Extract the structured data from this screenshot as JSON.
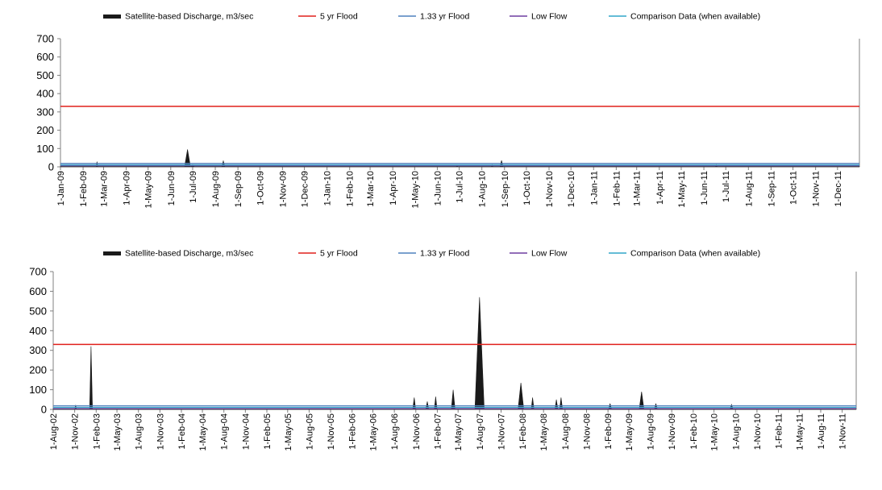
{
  "colors": {
    "discharge": "#1a1a1a",
    "flood5": "#e0201c",
    "flood133": "#4f81bd",
    "lowflow": "#6f3fa0",
    "comparison": "#31a6c8",
    "axis": "#808080"
  },
  "chart_data": [
    {
      "type": "area",
      "legend": [
        {
          "label": "Satellite-based Discharge, m3/sec",
          "key": "discharge",
          "style": "area"
        },
        {
          "label": "5 yr Flood",
          "key": "flood5",
          "style": "line"
        },
        {
          "label": "1.33 yr Flood",
          "key": "flood133",
          "style": "line"
        },
        {
          "label": "Low Flow",
          "key": "lowflow",
          "style": "line"
        },
        {
          "label": "Comparison Data (when available)",
          "key": "comparison",
          "style": "line"
        }
      ],
      "legend_position": "top",
      "ylim": [
        0,
        700
      ],
      "yticks": [
        0,
        100,
        200,
        300,
        400,
        500,
        600,
        700
      ],
      "xlim": [
        "2009-01-01",
        "2011-12-31"
      ],
      "xticks": [
        "1-Jan-09",
        "1-Feb-09",
        "1-Mar-09",
        "1-Apr-09",
        "1-May-09",
        "1-Jun-09",
        "1-Jul-09",
        "1-Aug-09",
        "1-Sep-09",
        "1-Oct-09",
        "1-Nov-09",
        "1-Dec-09",
        "1-Jan-10",
        "1-Feb-10",
        "1-Mar-10",
        "1-Apr-10",
        "1-May-10",
        "1-Jun-10",
        "1-Jul-10",
        "1-Aug-10",
        "1-Sep-10",
        "1-Oct-10",
        "1-Nov-10",
        "1-Dec-10",
        "1-Jan-11",
        "1-Feb-11",
        "1-Mar-11",
        "1-Apr-11",
        "1-May-11",
        "1-Jun-11",
        "1-Jul-11",
        "1-Aug-11",
        "1-Sep-11",
        "1-Oct-11",
        "1-Nov-11",
        "1-Dec-11"
      ],
      "flood5": 330,
      "flood133": 18,
      "lowflow": 6,
      "comparison": 10,
      "series": [
        {
          "key": "discharge",
          "baseline": 2,
          "peaks": [
            {
              "x": "2009-02-20",
              "y": 28,
              "w": 1
            },
            {
              "x": "2009-06-24",
              "y": 95,
              "w": 4
            },
            {
              "x": "2009-07-01",
              "y": 12,
              "w": 2
            },
            {
              "x": "2009-08-12",
              "y": 32,
              "w": 2
            },
            {
              "x": "2010-06-28",
              "y": 10,
              "w": 1
            },
            {
              "x": "2010-08-15",
              "y": 12,
              "w": 1
            },
            {
              "x": "2010-08-28",
              "y": 35,
              "w": 2
            },
            {
              "x": "2011-06-18",
              "y": 12,
              "w": 1
            }
          ]
        }
      ]
    },
    {
      "type": "area",
      "legend": [
        {
          "label": "Satellite-based Discharge, m3/sec",
          "key": "discharge",
          "style": "area"
        },
        {
          "label": "5 yr Flood",
          "key": "flood5",
          "style": "line"
        },
        {
          "label": "1.33 yr Flood",
          "key": "flood133",
          "style": "line"
        },
        {
          "label": "Low Flow",
          "key": "lowflow",
          "style": "line"
        },
        {
          "label": "Comparison Data (when available)",
          "key": "comparison",
          "style": "line"
        }
      ],
      "legend_position": "top",
      "ylim": [
        0,
        700
      ],
      "yticks": [
        0,
        100,
        200,
        300,
        400,
        500,
        600,
        700
      ],
      "xlim": [
        "2002-08-01",
        "2011-12-31"
      ],
      "xticks": [
        "1-Aug-02",
        "1-Nov-02",
        "1-Feb-03",
        "1-May-03",
        "1-Aug-03",
        "1-Nov-03",
        "1-Feb-04",
        "1-May-04",
        "1-Aug-04",
        "1-Nov-04",
        "1-Feb-05",
        "1-May-05",
        "1-Aug-05",
        "1-Nov-05",
        "1-Feb-06",
        "1-May-06",
        "1-Aug-06",
        "1-Nov-06",
        "1-Feb-07",
        "1-May-07",
        "1-Aug-07",
        "1-Nov-07",
        "1-Feb-08",
        "1-May-08",
        "1-Aug-08",
        "1-Nov-08",
        "1-Feb-09",
        "1-May-09",
        "1-Aug-09",
        "1-Nov-09",
        "1-Feb-10",
        "1-May-10",
        "1-Aug-10",
        "1-Nov-10",
        "1-Feb-11",
        "1-May-11",
        "1-Aug-11",
        "1-Nov-11"
      ],
      "flood5": 330,
      "flood133": 18,
      "lowflow": 4,
      "comparison": 10,
      "series": [
        {
          "key": "discharge",
          "baseline": 2,
          "peaks": [
            {
              "x": "2002-11-05",
              "y": 22,
              "w": 3
            },
            {
              "x": "2003-01-10",
              "y": 320,
              "w": 6
            },
            {
              "x": "2006-10-25",
              "y": 60,
              "w": 6
            },
            {
              "x": "2006-12-20",
              "y": 40,
              "w": 6
            },
            {
              "x": "2007-01-25",
              "y": 65,
              "w": 6
            },
            {
              "x": "2007-04-10",
              "y": 100,
              "w": 8
            },
            {
              "x": "2007-08-01",
              "y": 570,
              "w": 20
            },
            {
              "x": "2008-01-25",
              "y": 135,
              "w": 12
            },
            {
              "x": "2008-03-15",
              "y": 60,
              "w": 6
            },
            {
              "x": "2008-06-25",
              "y": 50,
              "w": 6
            },
            {
              "x": "2008-07-15",
              "y": 60,
              "w": 6
            },
            {
              "x": "2009-02-10",
              "y": 30,
              "w": 6
            },
            {
              "x": "2009-06-25",
              "y": 90,
              "w": 10
            },
            {
              "x": "2009-08-25",
              "y": 30,
              "w": 6
            },
            {
              "x": "2010-07-15",
              "y": 25,
              "w": 6
            }
          ]
        }
      ]
    }
  ]
}
